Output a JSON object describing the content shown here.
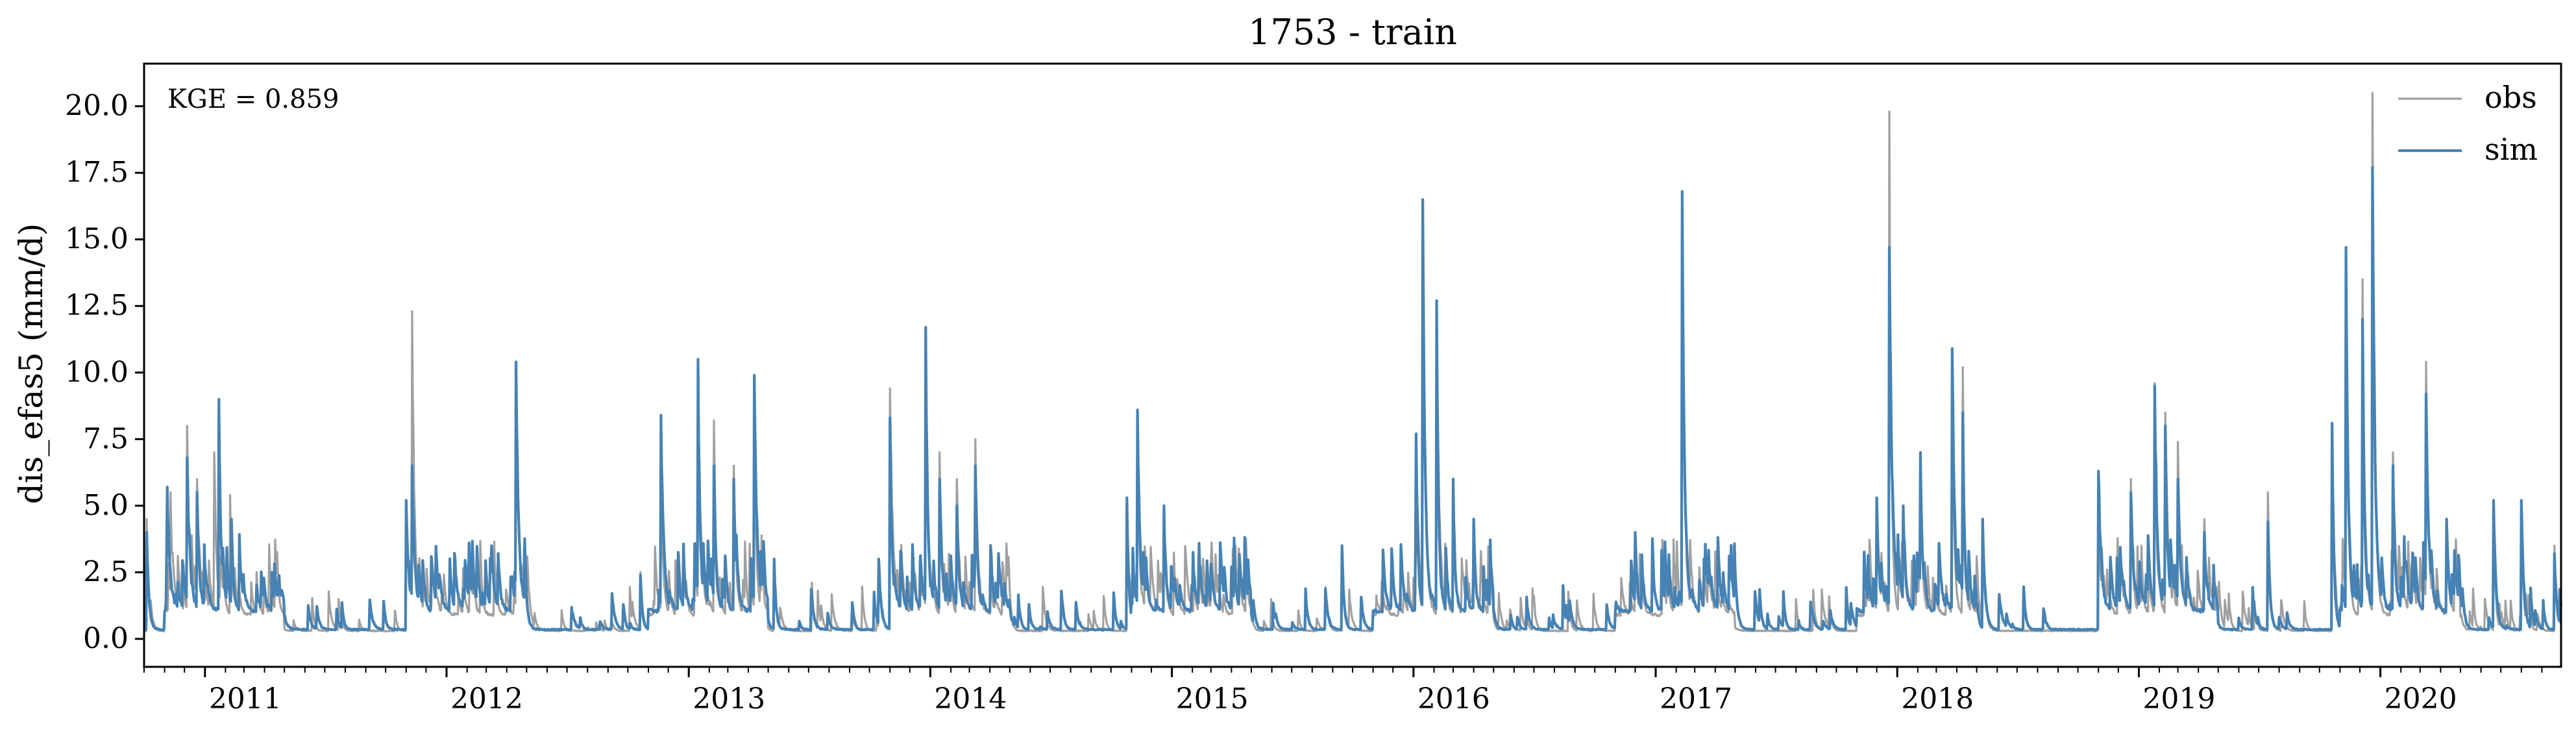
{
  "chart_data": {
    "type": "line",
    "title": "1753 - train",
    "ylabel": "dis_efas5 (mm/d)",
    "xlabel": "",
    "x_range": [
      "2010-10-01",
      "2020-09-30"
    ],
    "ylim": [
      -1.05,
      21.6
    ],
    "y_ticks": [
      0.0,
      2.5,
      5.0,
      7.5,
      10.0,
      12.5,
      15.0,
      17.5,
      20.0
    ],
    "y_tick_labels": [
      "0.0",
      "2.5",
      "5.0",
      "7.5",
      "10.0",
      "12.5",
      "15.0",
      "17.5",
      "20.0"
    ],
    "x_tick_labels": [
      "2011",
      "2012",
      "2013",
      "2014",
      "2015",
      "2016",
      "2017",
      "2018",
      "2019",
      "2020"
    ],
    "annotation": "KGE = 0.859",
    "legend": {
      "position": "top-right"
    },
    "grid": false,
    "series": [
      {
        "name": "obs",
        "color": "#a0a0a0",
        "peaks": [
          [
            "2010-10-05",
            4.5
          ],
          [
            "2010-11-10",
            5.5
          ],
          [
            "2010-12-05",
            8.0
          ],
          [
            "2010-12-20",
            6.0
          ],
          [
            "2011-01-15",
            7.0
          ],
          [
            "2011-02-08",
            5.4
          ],
          [
            "2011-03-20",
            2.5
          ],
          [
            "2011-11-01",
            5.0
          ],
          [
            "2011-11-10",
            12.3
          ],
          [
            "2011-12-10",
            3.0
          ],
          [
            "2012-04-15",
            9.5
          ],
          [
            "2012-10-20",
            2.5
          ],
          [
            "2012-11-20",
            7.0
          ],
          [
            "2013-01-15",
            10.0
          ],
          [
            "2013-02-08",
            8.2
          ],
          [
            "2013-03-10",
            6.5
          ],
          [
            "2013-04-10",
            9.5
          ],
          [
            "2013-05-10",
            3.0
          ],
          [
            "2013-10-15",
            3.0
          ],
          [
            "2013-11-01",
            9.4
          ],
          [
            "2013-12-25",
            10.0
          ],
          [
            "2014-01-15",
            7.0
          ],
          [
            "2014-02-10",
            6.0
          ],
          [
            "2014-03-10",
            7.5
          ],
          [
            "2014-10-25",
            5.0
          ],
          [
            "2014-11-10",
            7.9
          ],
          [
            "2014-12-20",
            4.5
          ],
          [
            "2015-03-01",
            3.0
          ],
          [
            "2015-09-15",
            3.3
          ],
          [
            "2016-01-05",
            7.5
          ],
          [
            "2016-01-15",
            16.5
          ],
          [
            "2016-02-05",
            12.0
          ],
          [
            "2016-03-01",
            6.0
          ],
          [
            "2016-04-01",
            4.0
          ],
          [
            "2016-12-01",
            3.5
          ],
          [
            "2017-02-10",
            16.7
          ],
          [
            "2017-03-15",
            3.0
          ],
          [
            "2017-12-01",
            5.0
          ],
          [
            "2017-12-20",
            19.8
          ],
          [
            "2018-01-10",
            5.0
          ],
          [
            "2018-02-05",
            7.0
          ],
          [
            "2018-03-25",
            10.5
          ],
          [
            "2018-04-10",
            10.2
          ],
          [
            "2018-05-10",
            4.0
          ],
          [
            "2018-11-01",
            5.0
          ],
          [
            "2018-12-20",
            6.0
          ],
          [
            "2019-01-25",
            9.6
          ],
          [
            "2019-02-10",
            8.5
          ],
          [
            "2019-03-01",
            7.4
          ],
          [
            "2019-04-10",
            4.5
          ],
          [
            "2019-07-15",
            5.5
          ],
          [
            "2019-10-20",
            8.0
          ],
          [
            "2019-11-10",
            14.0
          ],
          [
            "2019-12-05",
            13.5
          ],
          [
            "2019-12-20",
            20.5
          ],
          [
            "2020-01-20",
            7.0
          ],
          [
            "2020-03-10",
            10.4
          ],
          [
            "2020-04-10",
            4.0
          ],
          [
            "2020-06-20",
            5.0
          ],
          [
            "2020-08-01",
            5.0
          ],
          [
            "2020-09-20",
            3.5
          ]
        ]
      },
      {
        "name": "sim",
        "color": "#4682b4",
        "peaks": [
          [
            "2010-10-05",
            4.0
          ],
          [
            "2010-11-05",
            5.7
          ],
          [
            "2010-12-05",
            6.8
          ],
          [
            "2010-12-20",
            5.5
          ],
          [
            "2011-01-22",
            9.0
          ],
          [
            "2011-02-10",
            4.5
          ],
          [
            "2011-03-20",
            2.0
          ],
          [
            "2011-11-01",
            5.2
          ],
          [
            "2011-11-10",
            6.5
          ],
          [
            "2011-12-10",
            2.8
          ],
          [
            "2012-04-15",
            10.4
          ],
          [
            "2012-10-20",
            2.4
          ],
          [
            "2012-11-20",
            8.4
          ],
          [
            "2013-01-15",
            10.5
          ],
          [
            "2013-02-08",
            6.5
          ],
          [
            "2013-03-10",
            6.0
          ],
          [
            "2013-04-10",
            9.9
          ],
          [
            "2013-05-10",
            3.0
          ],
          [
            "2013-10-15",
            3.0
          ],
          [
            "2013-11-01",
            8.3
          ],
          [
            "2013-12-25",
            11.7
          ],
          [
            "2014-01-15",
            6.0
          ],
          [
            "2014-02-10",
            5.0
          ],
          [
            "2014-03-10",
            6.5
          ],
          [
            "2014-10-25",
            5.3
          ],
          [
            "2014-11-10",
            8.6
          ],
          [
            "2014-12-20",
            5.0
          ],
          [
            "2015-03-01",
            2.8
          ],
          [
            "2015-09-15",
            3.5
          ],
          [
            "2016-01-05",
            7.7
          ],
          [
            "2016-01-15",
            16.5
          ],
          [
            "2016-02-05",
            12.7
          ],
          [
            "2016-03-01",
            6.0
          ],
          [
            "2016-04-01",
            4.5
          ],
          [
            "2016-12-01",
            4.0
          ],
          [
            "2017-02-10",
            16.8
          ],
          [
            "2017-03-15",
            3.0
          ],
          [
            "2017-12-01",
            5.3
          ],
          [
            "2017-12-20",
            14.7
          ],
          [
            "2018-01-10",
            5.0
          ],
          [
            "2018-02-05",
            7.0
          ],
          [
            "2018-03-25",
            10.9
          ],
          [
            "2018-04-10",
            8.5
          ],
          [
            "2018-05-10",
            4.5
          ],
          [
            "2018-11-01",
            6.3
          ],
          [
            "2018-12-20",
            5.5
          ],
          [
            "2019-01-25",
            9.5
          ],
          [
            "2019-02-10",
            8.0
          ],
          [
            "2019-03-01",
            6.0
          ],
          [
            "2019-04-10",
            4.0
          ],
          [
            "2019-07-15",
            4.4
          ],
          [
            "2019-10-20",
            8.1
          ],
          [
            "2019-11-10",
            14.7
          ],
          [
            "2019-12-05",
            12.0
          ],
          [
            "2019-12-20",
            17.7
          ],
          [
            "2020-01-20",
            6.5
          ],
          [
            "2020-03-10",
            9.2
          ],
          [
            "2020-04-10",
            4.5
          ],
          [
            "2020-06-20",
            5.2
          ],
          [
            "2020-08-01",
            5.2
          ],
          [
            "2020-09-20",
            3.2
          ]
        ]
      }
    ]
  }
}
